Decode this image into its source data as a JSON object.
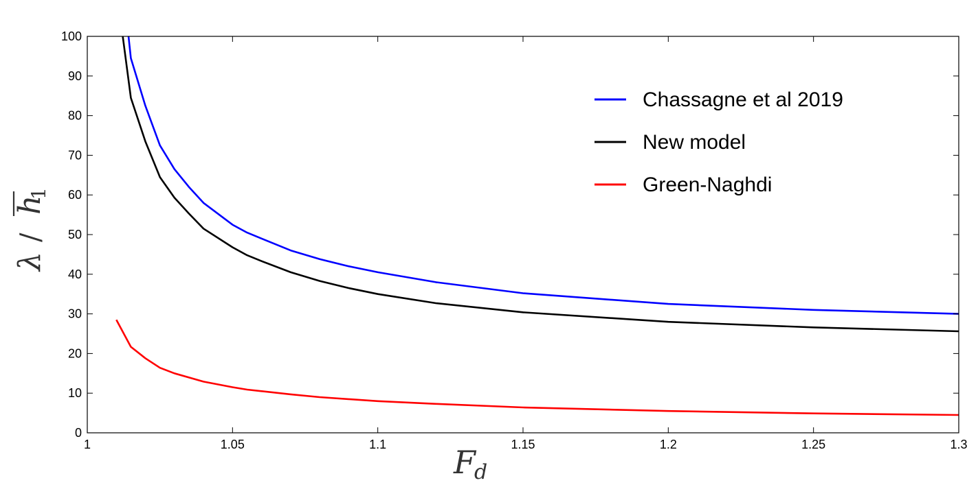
{
  "chart_data": {
    "type": "line",
    "xlabel": "F_d",
    "ylabel": "λ / h̄₁",
    "xlim": [
      1,
      1.3
    ],
    "ylim": [
      0,
      100
    ],
    "xticks": [
      1,
      1.05,
      1.1,
      1.15,
      1.2,
      1.25,
      1.3
    ],
    "xtick_labels": [
      "1",
      "1.05",
      "1.1",
      "1.15",
      "1.2",
      "1.25",
      "1.3"
    ],
    "yticks": [
      0,
      10,
      20,
      30,
      40,
      50,
      60,
      70,
      80,
      90,
      100
    ],
    "ytick_labels": [
      "0",
      "10",
      "20",
      "30",
      "40",
      "50",
      "60",
      "70",
      "80",
      "90",
      "100"
    ],
    "grid": false,
    "legend_position": "top-right",
    "series": [
      {
        "name": "Chassagne et al 2019",
        "color": "#0000ff",
        "x": [
          1.0142,
          1.015,
          1.02,
          1.025,
          1.03,
          1.035,
          1.04,
          1.05,
          1.055,
          1.06,
          1.07,
          1.08,
          1.09,
          1.1,
          1.12,
          1.15,
          1.2,
          1.25,
          1.3
        ],
        "y": [
          100,
          94.5,
          82.5,
          72.5,
          66.5,
          62,
          58,
          52.5,
          50.5,
          49,
          46,
          43.8,
          42,
          40.5,
          38,
          35.2,
          32.5,
          31,
          30
        ]
      },
      {
        "name": "New model",
        "color": "#000000",
        "x": [
          1.0122,
          1.015,
          1.02,
          1.025,
          1.03,
          1.035,
          1.04,
          1.05,
          1.055,
          1.06,
          1.07,
          1.08,
          1.09,
          1.1,
          1.12,
          1.15,
          1.2,
          1.25,
          1.3
        ],
        "y": [
          100,
          84.5,
          73.5,
          64.5,
          59.3,
          55.3,
          51.5,
          46.8,
          44.8,
          43.3,
          40.5,
          38.3,
          36.5,
          35,
          32.7,
          30.4,
          28,
          26.6,
          25.6
        ]
      },
      {
        "name": "Green-Naghdi",
        "color": "#ff0000",
        "x": [
          1.01,
          1.015,
          1.02,
          1.025,
          1.03,
          1.04,
          1.05,
          1.055,
          1.06,
          1.07,
          1.08,
          1.1,
          1.12,
          1.15,
          1.2,
          1.25,
          1.3
        ],
        "y": [
          28.5,
          21.7,
          18.8,
          16.4,
          15,
          12.9,
          11.5,
          10.9,
          10.5,
          9.7,
          9,
          8,
          7.3,
          6.4,
          5.5,
          4.9,
          4.5
        ]
      }
    ]
  }
}
